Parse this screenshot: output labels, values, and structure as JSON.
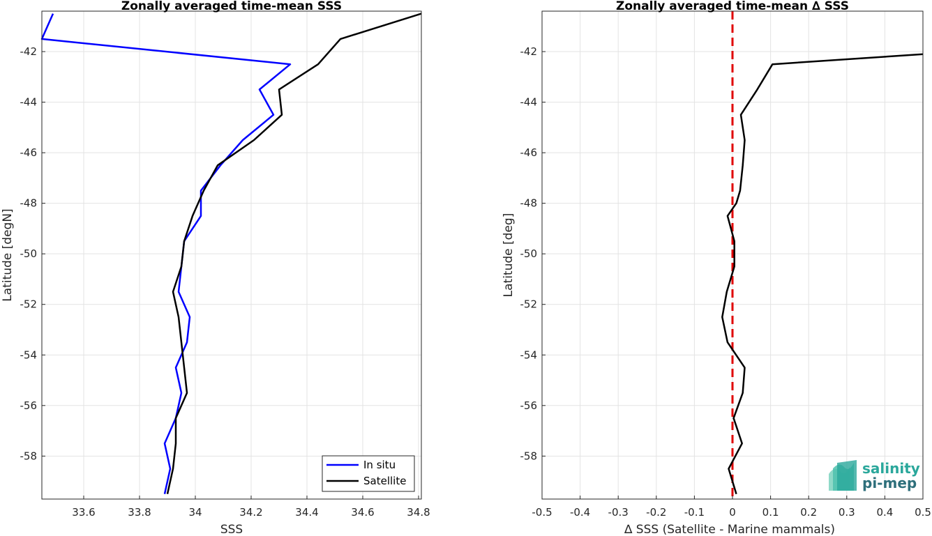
{
  "chart_data": [
    {
      "type": "line",
      "title": "Zonally averaged time-mean SSS",
      "xlabel": "SSS",
      "ylabel": "Latitude [degN]",
      "xlim": [
        33.45,
        34.81
      ],
      "ylim": [
        -59.7,
        -40.4
      ],
      "xticks": [
        33.6,
        33.8,
        34,
        34.2,
        34.4,
        34.6,
        34.8
      ],
      "xtick_labels": [
        "33.6",
        "33.8",
        "34",
        "34.2",
        "34.4",
        "34.6",
        "34.8"
      ],
      "yticks": [
        -58,
        -56,
        -54,
        -52,
        -50,
        -48,
        -46,
        -44,
        -42
      ],
      "ytick_labels": [
        "-58",
        "-56",
        "-54",
        "-52",
        "-50",
        "-48",
        "-46",
        "-44",
        "-42"
      ],
      "grid": true,
      "legend_position": "bottom-right",
      "series": [
        {
          "name": "In situ",
          "color": "#0000ff",
          "x": [
            33.49,
            33.45,
            34.34,
            34.23,
            34.28,
            34.17,
            34.09,
            34.02,
            34.02,
            33.96,
            33.95,
            33.94,
            33.98,
            33.97,
            33.93,
            33.95,
            33.93,
            33.89,
            33.91,
            33.89
          ],
          "y": [
            -40.5,
            -41.5,
            -42.5,
            -43.5,
            -44.5,
            -45.5,
            -46.5,
            -47.5,
            -48.5,
            -49.5,
            -50.5,
            -51.5,
            -52.5,
            -53.5,
            -54.5,
            -55.5,
            -56.5,
            -57.5,
            -58.5,
            -59.5
          ]
        },
        {
          "name": "Satellite",
          "color": "#000000",
          "x": [
            34.81,
            34.52,
            34.44,
            34.3,
            34.31,
            34.21,
            34.08,
            34.03,
            33.99,
            33.96,
            33.95,
            33.92,
            33.94,
            33.95,
            33.96,
            33.97,
            33.93,
            33.93,
            33.92,
            33.9
          ],
          "y": [
            -40.5,
            -41.5,
            -42.5,
            -43.5,
            -44.5,
            -45.5,
            -46.5,
            -47.5,
            -48.5,
            -49.5,
            -50.5,
            -51.5,
            -52.5,
            -53.5,
            -54.5,
            -55.5,
            -56.5,
            -57.5,
            -58.5,
            -59.5
          ]
        }
      ]
    },
    {
      "type": "line",
      "title": "Zonally averaged time-mean ∆ SSS",
      "xlabel": "∆ SSS (Satellite - Marine mammals)",
      "ylabel": "Latitude [deg]",
      "xlim": [
        -0.5,
        0.5
      ],
      "ylim": [
        -59.7,
        -40.4
      ],
      "xticks": [
        -0.5,
        -0.4,
        -0.3,
        -0.2,
        -0.1,
        0,
        0.1,
        0.2,
        0.3,
        0.4,
        0.5
      ],
      "xtick_labels": [
        "-0.5",
        "-0.4",
        "-0.3",
        "-0.2",
        "-0.1",
        "0",
        "0.1",
        "0.2",
        "0.3",
        "0.4",
        "0.5"
      ],
      "yticks": [
        -58,
        -56,
        -54,
        -52,
        -50,
        -48,
        -46,
        -44,
        -42
      ],
      "ytick_labels": [
        "-58",
        "-56",
        "-54",
        "-52",
        "-50",
        "-48",
        "-46",
        "-44",
        "-42"
      ],
      "grid": true,
      "reference_line": {
        "x": 0,
        "color": "#e00000",
        "style": "dashed"
      },
      "series": [
        {
          "color": "#000000",
          "x": [
            0.5,
            0.105,
            0.065,
            0.022,
            0.032,
            0.027,
            0.02,
            0.01,
            -0.013,
            0.005,
            0.005,
            -0.015,
            -0.027,
            -0.013,
            0.032,
            0.027,
            0.003,
            0.025,
            -0.01,
            0.01
          ],
          "y": [
            -42.1,
            -42.5,
            -43.5,
            -44.5,
            -45.5,
            -46.5,
            -47.5,
            -48.0,
            -48.5,
            -49.5,
            -50.5,
            -51.5,
            -52.5,
            -53.5,
            -54.5,
            -55.5,
            -56.5,
            -57.5,
            -58.5,
            -59.5
          ]
        }
      ]
    }
  ],
  "logo": {
    "line1": "salinity",
    "line2": "pi-mep",
    "colors": [
      "#2aa79b",
      "#2e6f7b",
      "#8fd9c8"
    ]
  }
}
